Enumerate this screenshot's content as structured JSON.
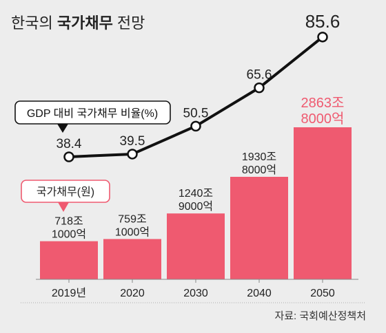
{
  "title": {
    "prefix": "한국의 ",
    "bold": "국가채무",
    "suffix": " 전망"
  },
  "source": "자료: 국회예산정책처",
  "colors": {
    "background": "#ededed",
    "bar": "#ef5a70",
    "bar_highlight_label": "#ef5a70",
    "line": "#111111",
    "text": "#222222",
    "axis": "#888888"
  },
  "legend": {
    "ratio_label": "GDP 대비 국가채무 비율(%)",
    "debt_label": "국가채무(원)"
  },
  "chart_data": {
    "type": "bar",
    "categories": [
      "2019년",
      "2020",
      "2030",
      "2040",
      "2050"
    ],
    "series": [
      {
        "name": "국가채무(원)",
        "type": "bar",
        "values": [
          718.1,
          759.1,
          1240.9,
          1930.8,
          2863.8
        ],
        "labels": [
          [
            "718조",
            "1000억"
          ],
          [
            "759조",
            "1000억"
          ],
          [
            "1240조",
            "9000억"
          ],
          [
            "1930조",
            "8000억"
          ],
          [
            "2863조",
            "8000억"
          ]
        ]
      },
      {
        "name": "GDP 대비 국가채무 비율(%)",
        "type": "line",
        "values": [
          38.4,
          39.5,
          50.5,
          65.6,
          85.6
        ],
        "labels": [
          "38.4",
          "39.5",
          "50.5",
          "65.6",
          "85.6"
        ]
      }
    ],
    "highlight_index": 4
  }
}
